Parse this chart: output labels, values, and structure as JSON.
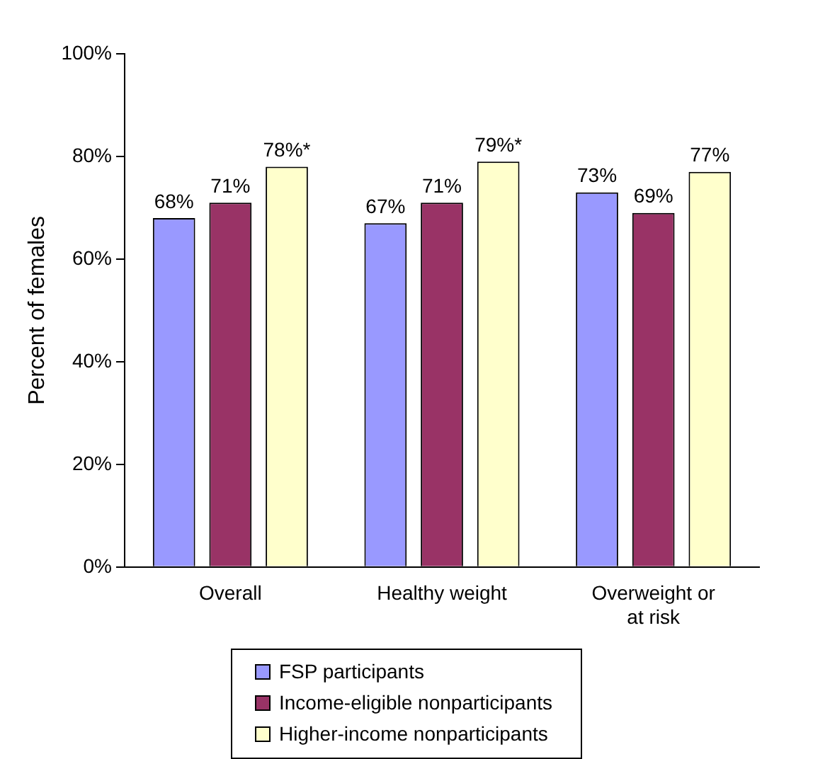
{
  "chart_data": {
    "type": "bar",
    "ylabel": "Percent of females",
    "categories": [
      "Overall",
      "Healthy weight",
      "Overweight or at risk"
    ],
    "series": [
      {
        "name": "FSP participants",
        "color": "#9999ff",
        "values": [
          68,
          67,
          73
        ],
        "value_labels": [
          "68%",
          "67%",
          "73%"
        ]
      },
      {
        "name": "Income-eligible nonparticipants",
        "color": "#993366",
        "values": [
          71,
          71,
          69
        ],
        "value_labels": [
          "71%",
          "71%",
          "69%"
        ]
      },
      {
        "name": "Higher-income nonparticipants",
        "color": "#ffffcc",
        "values": [
          78,
          79,
          77
        ],
        "value_labels": [
          "78%*",
          "79%*",
          "77%"
        ]
      }
    ],
    "ylim": [
      0,
      100
    ],
    "yticks": [
      {
        "value": 0,
        "label": "0%"
      },
      {
        "value": 20,
        "label": "20%"
      },
      {
        "value": 40,
        "label": "40%"
      },
      {
        "value": 60,
        "label": "60%"
      },
      {
        "value": 80,
        "label": "80%"
      },
      {
        "value": 100,
        "label": "100%"
      }
    ],
    "grid": false,
    "legend": "bottom"
  }
}
